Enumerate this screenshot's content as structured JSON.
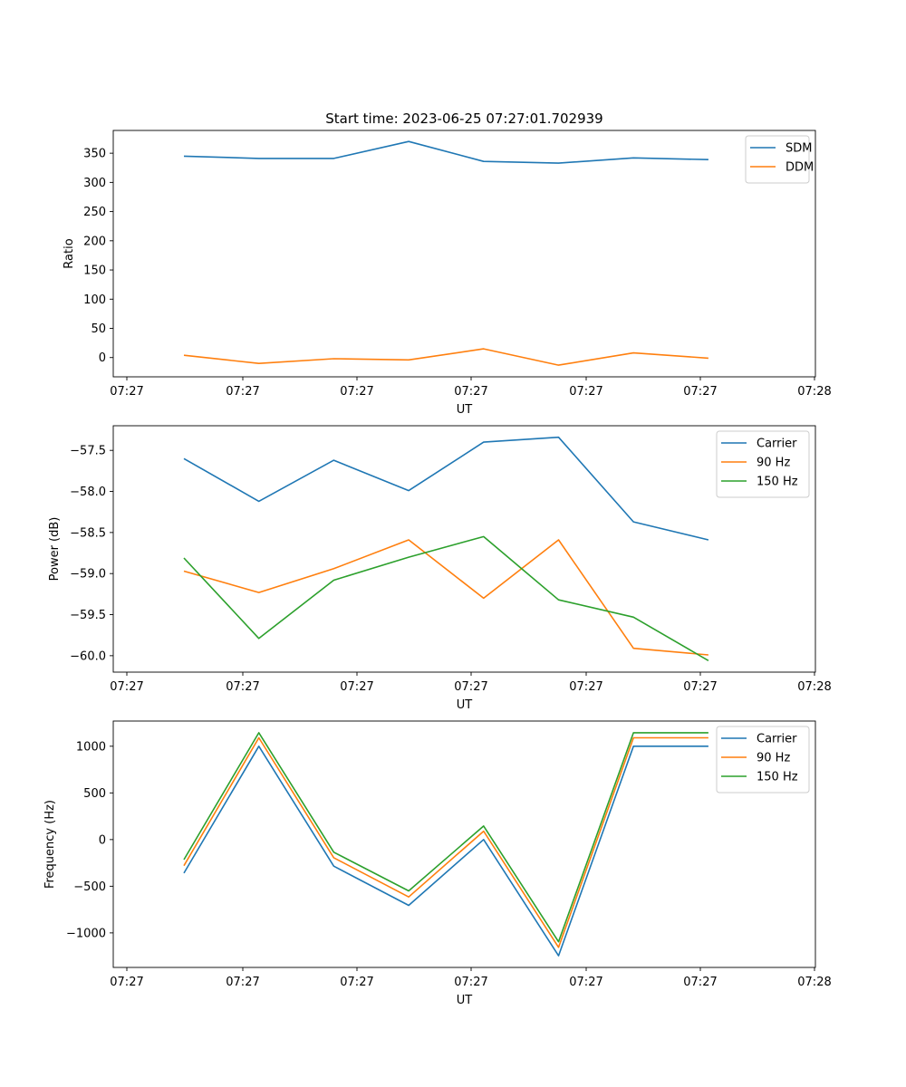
{
  "figure_title": "Start time: 2023-06-25 07:27:01.702939",
  "colors": {
    "blue": "#1f77b4",
    "orange": "#ff7f0e",
    "green": "#2ca02c"
  },
  "chart_data": [
    {
      "type": "line",
      "xlabel": "UT",
      "ylabel": "Ratio",
      "ylim": [
        -33,
        389
      ],
      "yticks": [
        0,
        50,
        100,
        150,
        200,
        250,
        300,
        350
      ],
      "xtick_labels": [
        "07:27",
        "07:27",
        "07:27",
        "07:27",
        "07:27",
        "07:27",
        "07:28"
      ],
      "legend": "top-right",
      "grid": false,
      "x": [
        1,
        2,
        3,
        4,
        5,
        6,
        7,
        8
      ],
      "series": [
        {
          "name": "SDM",
          "color": "#1f77b4",
          "values": [
            345,
            341,
            341,
            370,
            336,
            333,
            342,
            339
          ]
        },
        {
          "name": "DDM",
          "color": "#ff7f0e",
          "values": [
            4,
            -10,
            -2,
            -4,
            15,
            -13,
            8,
            -1
          ]
        }
      ]
    },
    {
      "type": "line",
      "xlabel": "UT",
      "ylabel": "Power (dB)",
      "ylim": [
        -60.2,
        -57.2
      ],
      "yticks": [
        -57.5,
        -58.0,
        -58.5,
        -59.0,
        -59.5,
        -60.0
      ],
      "xtick_labels": [
        "07:27",
        "07:27",
        "07:27",
        "07:27",
        "07:27",
        "07:27",
        "07:28"
      ],
      "legend": "top-right",
      "grid": false,
      "x": [
        1,
        2,
        3,
        4,
        5,
        6,
        7,
        8
      ],
      "series": [
        {
          "name": "Carrier",
          "color": "#1f77b4",
          "values": [
            -57.6,
            -58.12,
            -57.62,
            -57.99,
            -57.4,
            -57.34,
            -58.37,
            -58.59
          ]
        },
        {
          "name": "90 Hz",
          "color": "#ff7f0e",
          "values": [
            -58.97,
            -59.23,
            -58.94,
            -58.59,
            -59.3,
            -58.59,
            -59.91,
            -59.99
          ]
        },
        {
          "name": "150 Hz",
          "color": "#2ca02c",
          "values": [
            -58.81,
            -59.79,
            -59.08,
            -58.8,
            -58.55,
            -59.32,
            -59.53,
            -60.06
          ]
        }
      ]
    },
    {
      "type": "line",
      "xlabel": "UT",
      "ylabel": "Frequency (Hz)",
      "ylim": [
        -1370,
        1270
      ],
      "yticks": [
        1000,
        500,
        0,
        -500,
        -1000
      ],
      "xtick_labels": [
        "07:27",
        "07:27",
        "07:27",
        "07:27",
        "07:27",
        "07:27",
        "07:28"
      ],
      "legend": "top-right",
      "grid": false,
      "x": [
        1,
        2,
        3,
        4,
        5,
        6,
        7,
        8
      ],
      "series": [
        {
          "name": "Carrier",
          "color": "#1f77b4",
          "values": [
            -360,
            1000,
            -285,
            -705,
            0,
            -1245,
            1000,
            1000
          ]
        },
        {
          "name": "90 Hz",
          "color": "#ff7f0e",
          "values": [
            -280,
            1090,
            -195,
            -615,
            90,
            -1155,
            1090,
            1090
          ]
        },
        {
          "name": "150 Hz",
          "color": "#2ca02c",
          "values": [
            -215,
            1145,
            -135,
            -550,
            145,
            -1095,
            1145,
            1145
          ]
        }
      ]
    }
  ]
}
